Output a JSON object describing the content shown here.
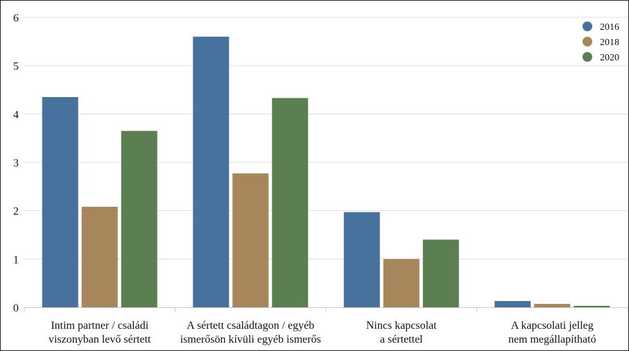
{
  "chart_data": {
    "type": "bar",
    "categories": [
      [
        "Intim partner / családi",
        "viszonyban levő sértett"
      ],
      [
        "A sértett családtagon / egyéb",
        "ismerősön kívüli egyéb ismerős"
      ],
      [
        "Nincs kapcsolat",
        "a sértettel"
      ],
      [
        "A kapcsolati jelleg",
        "nem megállapítható"
      ]
    ],
    "series": [
      {
        "name": "2016",
        "color": "#48729e",
        "values": [
          4.35,
          5.6,
          1.97,
          0.13
        ]
      },
      {
        "name": "2018",
        "color": "#a6865a",
        "values": [
          2.08,
          2.77,
          1.0,
          0.07
        ]
      },
      {
        "name": "2020",
        "color": "#5b7f50",
        "values": [
          3.65,
          4.33,
          1.4,
          0.03
        ]
      }
    ],
    "ylim": [
      0,
      6
    ],
    "yticks": [
      "0",
      "1",
      "2",
      "3",
      "4",
      "5",
      "6"
    ],
    "grid": true,
    "legend_position": "top-right"
  }
}
